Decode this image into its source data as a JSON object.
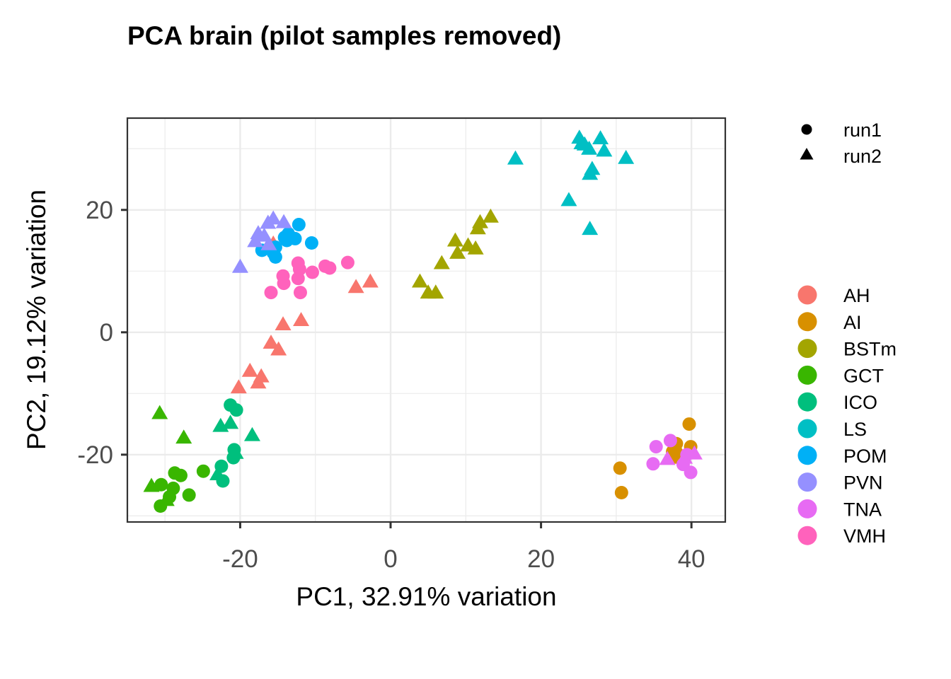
{
  "chart_data": {
    "type": "scatter",
    "title": "PCA brain (pilot samples removed)",
    "xlabel": "PC1, 32.91% variation",
    "ylabel": "PC2, 19.12% variation",
    "xlim": [
      -35,
      44.5
    ],
    "ylim": [
      -31,
      35
    ],
    "x_ticks": [
      -20,
      0,
      20,
      40
    ],
    "y_ticks": [
      -20,
      0,
      20
    ],
    "grid": true,
    "legend_position": "right",
    "shape_legend": [
      {
        "label": "run1",
        "shape": "circle"
      },
      {
        "label": "run2",
        "shape": "triangle"
      }
    ],
    "series": [
      {
        "name": "AH",
        "color": "#F8766D",
        "points": [
          {
            "x": -4.6,
            "y": 7.3,
            "shape": "triangle"
          },
          {
            "x": -2.7,
            "y": 8.2,
            "shape": "triangle"
          },
          {
            "x": -14.3,
            "y": 1.2,
            "shape": "triangle"
          },
          {
            "x": -11.9,
            "y": 1.9,
            "shape": "triangle"
          },
          {
            "x": -15.9,
            "y": -1.8,
            "shape": "triangle"
          },
          {
            "x": -14.9,
            "y": -2.9,
            "shape": "triangle"
          },
          {
            "x": -18.7,
            "y": -6.4,
            "shape": "triangle"
          },
          {
            "x": -17.2,
            "y": -7.3,
            "shape": "triangle"
          },
          {
            "x": -17.6,
            "y": -8.3,
            "shape": "triangle"
          },
          {
            "x": -20.2,
            "y": -9.1,
            "shape": "triangle"
          },
          {
            "x": -15.6,
            "y": 14.4,
            "shape": "triangle"
          }
        ]
      },
      {
        "name": "AI",
        "color": "#D89000",
        "points": [
          {
            "x": 39.7,
            "y": -15.0,
            "shape": "circle"
          },
          {
            "x": 38.0,
            "y": -18.2,
            "shape": "circle"
          },
          {
            "x": 39.9,
            "y": -18.7,
            "shape": "circle"
          },
          {
            "x": 37.5,
            "y": -19.5,
            "shape": "circle"
          },
          {
            "x": 38.2,
            "y": -20.4,
            "shape": "circle"
          },
          {
            "x": 30.5,
            "y": -22.2,
            "shape": "circle"
          },
          {
            "x": 30.7,
            "y": -26.2,
            "shape": "circle"
          },
          {
            "x": 38.4,
            "y": -19.7,
            "shape": "triangle"
          },
          {
            "x": 37.6,
            "y": -20.6,
            "shape": "triangle"
          }
        ]
      },
      {
        "name": "BSTm",
        "color": "#A3A500",
        "points": [
          {
            "x": 13.3,
            "y": 18.8,
            "shape": "triangle"
          },
          {
            "x": 11.9,
            "y": 17.9,
            "shape": "triangle"
          },
          {
            "x": 11.6,
            "y": 16.9,
            "shape": "triangle"
          },
          {
            "x": 8.6,
            "y": 14.9,
            "shape": "triangle"
          },
          {
            "x": 10.3,
            "y": 14.1,
            "shape": "triangle"
          },
          {
            "x": 11.3,
            "y": 13.6,
            "shape": "triangle"
          },
          {
            "x": 8.9,
            "y": 12.9,
            "shape": "triangle"
          },
          {
            "x": 6.8,
            "y": 11.2,
            "shape": "triangle"
          },
          {
            "x": 3.9,
            "y": 8.2,
            "shape": "triangle"
          },
          {
            "x": 5.0,
            "y": 6.4,
            "shape": "triangle"
          },
          {
            "x": 6.0,
            "y": 6.4,
            "shape": "triangle"
          }
        ]
      },
      {
        "name": "GCT",
        "color": "#39B600",
        "points": [
          {
            "x": -30.7,
            "y": -13.3,
            "shape": "triangle"
          },
          {
            "x": -27.5,
            "y": -17.3,
            "shape": "triangle"
          },
          {
            "x": -31.8,
            "y": -25.2,
            "shape": "triangle"
          },
          {
            "x": -29.8,
            "y": -27.5,
            "shape": "triangle"
          },
          {
            "x": -30.5,
            "y": -24.9,
            "shape": "circle"
          },
          {
            "x": -28.7,
            "y": -23.0,
            "shape": "circle"
          },
          {
            "x": -27.9,
            "y": -23.4,
            "shape": "circle"
          },
          {
            "x": -28.9,
            "y": -25.5,
            "shape": "circle"
          },
          {
            "x": -26.8,
            "y": -26.6,
            "shape": "circle"
          },
          {
            "x": -24.9,
            "y": -22.7,
            "shape": "circle"
          },
          {
            "x": -29.4,
            "y": -26.9,
            "shape": "circle"
          },
          {
            "x": -30.6,
            "y": -28.4,
            "shape": "circle"
          }
        ]
      },
      {
        "name": "ICO",
        "color": "#00BF7D",
        "points": [
          {
            "x": -21.3,
            "y": -11.9,
            "shape": "circle"
          },
          {
            "x": -20.5,
            "y": -12.7,
            "shape": "circle"
          },
          {
            "x": -22.5,
            "y": -21.9,
            "shape": "circle"
          },
          {
            "x": -22.3,
            "y": -24.3,
            "shape": "circle"
          },
          {
            "x": -20.9,
            "y": -20.5,
            "shape": "circle"
          },
          {
            "x": -20.8,
            "y": -19.2,
            "shape": "circle"
          },
          {
            "x": -22.6,
            "y": -15.4,
            "shape": "triangle"
          },
          {
            "x": -21.3,
            "y": -14.9,
            "shape": "triangle"
          },
          {
            "x": -18.4,
            "y": -16.9,
            "shape": "triangle"
          },
          {
            "x": -20.6,
            "y": -19.8,
            "shape": "triangle"
          },
          {
            "x": -23.0,
            "y": -23.3,
            "shape": "triangle"
          }
        ]
      },
      {
        "name": "LS",
        "color": "#00BFC4",
        "points": [
          {
            "x": 25.1,
            "y": 31.7,
            "shape": "triangle"
          },
          {
            "x": 25.8,
            "y": 30.6,
            "shape": "triangle"
          },
          {
            "x": 27.9,
            "y": 31.6,
            "shape": "triangle"
          },
          {
            "x": 25.4,
            "y": 30.8,
            "shape": "triangle"
          },
          {
            "x": 26.4,
            "y": 29.9,
            "shape": "triangle"
          },
          {
            "x": 28.4,
            "y": 29.6,
            "shape": "triangle"
          },
          {
            "x": 16.6,
            "y": 28.3,
            "shape": "triangle"
          },
          {
            "x": 31.3,
            "y": 28.4,
            "shape": "triangle"
          },
          {
            "x": 26.8,
            "y": 26.6,
            "shape": "triangle"
          },
          {
            "x": 26.5,
            "y": 25.8,
            "shape": "triangle"
          },
          {
            "x": 23.7,
            "y": 21.5,
            "shape": "triangle"
          },
          {
            "x": 26.5,
            "y": 16.8,
            "shape": "triangle"
          }
        ]
      },
      {
        "name": "POM",
        "color": "#00B0F6",
        "points": [
          {
            "x": -12.2,
            "y": 17.6,
            "shape": "circle"
          },
          {
            "x": -13.6,
            "y": 16.1,
            "shape": "circle"
          },
          {
            "x": -14.1,
            "y": 15.5,
            "shape": "circle"
          },
          {
            "x": -12.7,
            "y": 15.3,
            "shape": "circle"
          },
          {
            "x": -13.8,
            "y": 15.0,
            "shape": "circle"
          },
          {
            "x": -10.5,
            "y": 14.6,
            "shape": "circle"
          },
          {
            "x": -15.3,
            "y": 13.9,
            "shape": "circle"
          },
          {
            "x": -15.6,
            "y": 13.0,
            "shape": "circle"
          },
          {
            "x": -17.1,
            "y": 13.4,
            "shape": "circle"
          },
          {
            "x": -15.3,
            "y": 12.3,
            "shape": "circle"
          }
        ]
      },
      {
        "name": "PVN",
        "color": "#9590FF",
        "points": [
          {
            "x": -15.6,
            "y": 18.5,
            "shape": "triangle"
          },
          {
            "x": -16.3,
            "y": 17.8,
            "shape": "triangle"
          },
          {
            "x": -14.2,
            "y": 17.9,
            "shape": "triangle"
          },
          {
            "x": -17.6,
            "y": 16.1,
            "shape": "triangle"
          },
          {
            "x": -16.8,
            "y": 15.7,
            "shape": "triangle"
          },
          {
            "x": -18.0,
            "y": 14.8,
            "shape": "triangle"
          },
          {
            "x": -16.2,
            "y": 14.3,
            "shape": "triangle"
          },
          {
            "x": -20.0,
            "y": 10.6,
            "shape": "triangle"
          }
        ]
      },
      {
        "name": "TNA",
        "color": "#E76BF3",
        "points": [
          {
            "x": 35.3,
            "y": -18.7,
            "shape": "circle"
          },
          {
            "x": 37.2,
            "y": -17.7,
            "shape": "circle"
          },
          {
            "x": 34.9,
            "y": -21.5,
            "shape": "circle"
          },
          {
            "x": 38.9,
            "y": -21.6,
            "shape": "circle"
          },
          {
            "x": 39.9,
            "y": -22.9,
            "shape": "circle"
          },
          {
            "x": 39.4,
            "y": -20.0,
            "shape": "circle"
          },
          {
            "x": 40.4,
            "y": -19.9,
            "shape": "triangle"
          },
          {
            "x": 36.8,
            "y": -20.8,
            "shape": "triangle"
          },
          {
            "x": 39.1,
            "y": -20.6,
            "shape": "triangle"
          }
        ]
      },
      {
        "name": "VMH",
        "color": "#FF62BC",
        "points": [
          {
            "x": -12.3,
            "y": 11.3,
            "shape": "circle"
          },
          {
            "x": -5.7,
            "y": 11.4,
            "shape": "circle"
          },
          {
            "x": -8.7,
            "y": 10.8,
            "shape": "circle"
          },
          {
            "x": -8.1,
            "y": 10.5,
            "shape": "circle"
          },
          {
            "x": -12.1,
            "y": 10.3,
            "shape": "circle"
          },
          {
            "x": -10.4,
            "y": 9.8,
            "shape": "circle"
          },
          {
            "x": -14.3,
            "y": 9.2,
            "shape": "circle"
          },
          {
            "x": -12.3,
            "y": 8.8,
            "shape": "circle"
          },
          {
            "x": -14.2,
            "y": 8.0,
            "shape": "circle"
          },
          {
            "x": -15.9,
            "y": 6.5,
            "shape": "circle"
          },
          {
            "x": -12.0,
            "y": 6.5,
            "shape": "circle"
          }
        ]
      }
    ]
  }
}
